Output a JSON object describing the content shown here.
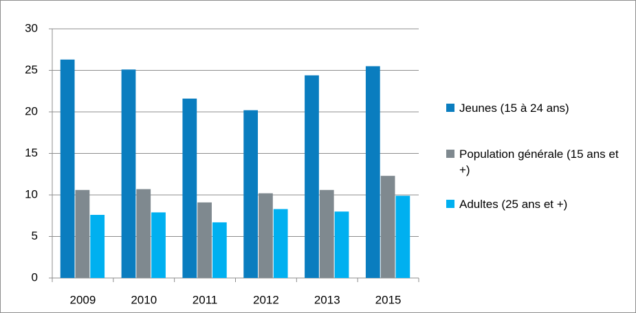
{
  "chart_data": {
    "type": "bar",
    "categories": [
      "2009",
      "2010",
      "2011",
      "2012",
      "2013",
      "2015"
    ],
    "series": [
      {
        "name": "Jeunes (15 à 24 ans)",
        "color": "#0a7dbf",
        "values": [
          26.3,
          25.1,
          21.6,
          20.2,
          24.4,
          25.5
        ]
      },
      {
        "name": "Population générale (15 ans et +)",
        "color": "#7f898f",
        "values": [
          10.6,
          10.7,
          9.1,
          10.2,
          10.6,
          12.3
        ]
      },
      {
        "name": "Adultes (25 ans et +)",
        "color": "#00b0f0",
        "values": [
          7.6,
          7.9,
          6.7,
          8.3,
          8.0,
          9.9
        ]
      }
    ],
    "ylim": [
      0,
      30
    ],
    "yticks": [
      0,
      5,
      10,
      15,
      20,
      25,
      30
    ],
    "grid": true,
    "legend": "right"
  }
}
